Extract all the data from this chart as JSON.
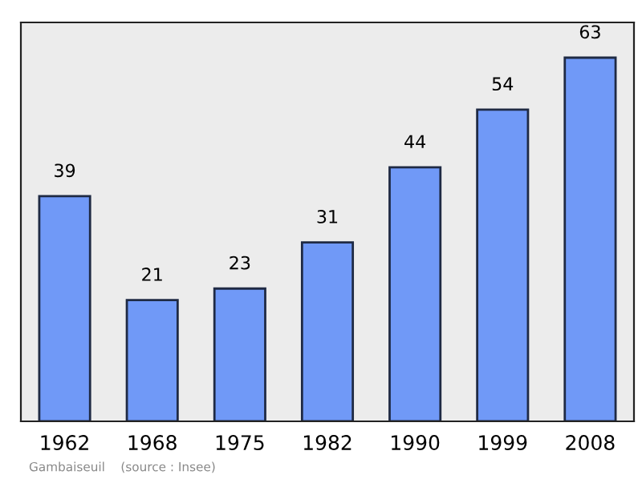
{
  "chart_data": {
    "type": "bar",
    "categories": [
      "1962",
      "1968",
      "1975",
      "1982",
      "1990",
      "1999",
      "2008"
    ],
    "values": [
      39,
      21,
      23,
      31,
      44,
      54,
      63
    ],
    "color": "#7099f7",
    "data_labels": true,
    "grid": false,
    "tick_labels": "x",
    "annotations": [
      "Gambaiseuil    (source : Insee)"
    ]
  }
}
